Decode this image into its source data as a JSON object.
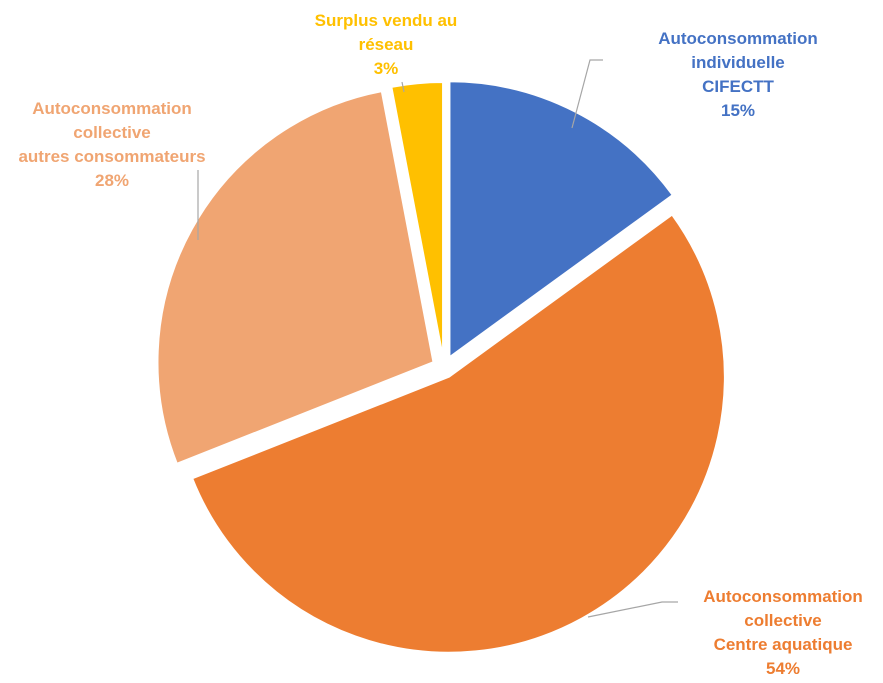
{
  "chart_data": {
    "type": "pie",
    "slices": [
      {
        "label_lines": [
          "Autoconsommation",
          "individuelle",
          "CIFECTT"
        ],
        "value": 15,
        "value_label": "15%",
        "color": "#4472C4",
        "label_color": "#4472C4"
      },
      {
        "label_lines": [
          "Autoconsommation",
          "collective",
          "Centre aquatique"
        ],
        "value": 54,
        "value_label": "54%",
        "color": "#ED7D31",
        "label_color": "#ED7D31"
      },
      {
        "label_lines": [
          "Autoconsommation",
          "collective",
          "autres consommateurs"
        ],
        "value": 28,
        "value_label": "28%",
        "color": "#F0A572",
        "label_color": "#F0A572"
      },
      {
        "label_lines": [
          "Surplus vendu au",
          "réseau"
        ],
        "value": 3,
        "value_label": "3%",
        "color": "#FFC000",
        "label_color": "#FFC000"
      }
    ],
    "legend": "none"
  }
}
